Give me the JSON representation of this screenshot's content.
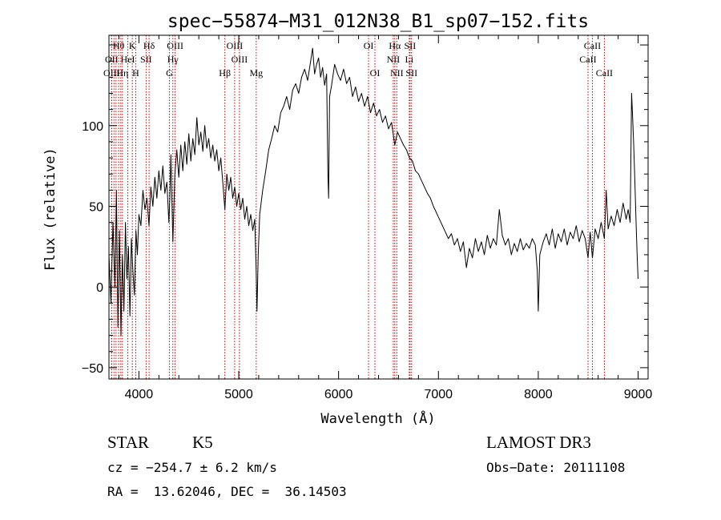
{
  "chart_data": {
    "type": "line",
    "title": "spec−55874−M31_012N38_B1_sp07−152.fits",
    "xlabel": "Wavelength (Å)",
    "ylabel": "Flux (relative)",
    "xlim": [
      3700,
      9100
    ],
    "ylim": [
      -57,
      156
    ],
    "xticks": [
      4000,
      5000,
      6000,
      7000,
      8000,
      9000
    ],
    "yticks": [
      -50,
      0,
      50,
      100
    ],
    "line_color": "#000000",
    "marker_color": "#c00000",
    "spectrum": [
      [
        3700,
        20
      ],
      [
        3720,
        -10
      ],
      [
        3740,
        40
      ],
      [
        3760,
        0
      ],
      [
        3775,
        60
      ],
      [
        3790,
        -25
      ],
      [
        3805,
        35
      ],
      [
        3820,
        -30
      ],
      [
        3835,
        20
      ],
      [
        3850,
        -15
      ],
      [
        3865,
        40
      ],
      [
        3880,
        5
      ],
      [
        3895,
        25
      ],
      [
        3910,
        -18
      ],
      [
        3925,
        30
      ],
      [
        3940,
        10
      ],
      [
        3955,
        -5
      ],
      [
        3970,
        35
      ],
      [
        3985,
        20
      ],
      [
        4000,
        45
      ],
      [
        4020,
        38
      ],
      [
        4040,
        60
      ],
      [
        4060,
        48
      ],
      [
        4080,
        55
      ],
      [
        4101,
        38
      ],
      [
        4120,
        62
      ],
      [
        4140,
        50
      ],
      [
        4160,
        68
      ],
      [
        4180,
        55
      ],
      [
        4200,
        72
      ],
      [
        4220,
        60
      ],
      [
        4240,
        75
      ],
      [
        4260,
        58
      ],
      [
        4280,
        65
      ],
      [
        4300,
        40
      ],
      [
        4310,
        55
      ],
      [
        4320,
        82
      ],
      [
        4340,
        28
      ],
      [
        4360,
        70
      ],
      [
        4380,
        85
      ],
      [
        4400,
        68
      ],
      [
        4420,
        88
      ],
      [
        4440,
        72
      ],
      [
        4460,
        90
      ],
      [
        4480,
        76
      ],
      [
        4500,
        95
      ],
      [
        4520,
        78
      ],
      [
        4540,
        92
      ],
      [
        4560,
        82
      ],
      [
        4580,
        105
      ],
      [
        4600,
        88
      ],
      [
        4620,
        96
      ],
      [
        4640,
        84
      ],
      [
        4660,
        100
      ],
      [
        4680,
        86
      ],
      [
        4700,
        92
      ],
      [
        4720,
        80
      ],
      [
        4740,
        88
      ],
      [
        4760,
        78
      ],
      [
        4780,
        85
      ],
      [
        4800,
        72
      ],
      [
        4820,
        80
      ],
      [
        4840,
        65
      ],
      [
        4861,
        48
      ],
      [
        4880,
        70
      ],
      [
        4900,
        60
      ],
      [
        4920,
        68
      ],
      [
        4940,
        55
      ],
      [
        4960,
        62
      ],
      [
        4980,
        50
      ],
      [
        5000,
        58
      ],
      [
        5020,
        48
      ],
      [
        5040,
        55
      ],
      [
        5060,
        42
      ],
      [
        5080,
        50
      ],
      [
        5100,
        38
      ],
      [
        5120,
        45
      ],
      [
        5140,
        35
      ],
      [
        5160,
        42
      ],
      [
        5175,
        10
      ],
      [
        5183,
        -15
      ],
      [
        5195,
        20
      ],
      [
        5210,
        45
      ],
      [
        5240,
        60
      ],
      [
        5270,
        72
      ],
      [
        5300,
        85
      ],
      [
        5330,
        92
      ],
      [
        5360,
        100
      ],
      [
        5390,
        96
      ],
      [
        5420,
        108
      ],
      [
        5450,
        112
      ],
      [
        5480,
        118
      ],
      [
        5510,
        110
      ],
      [
        5540,
        122
      ],
      [
        5570,
        126
      ],
      [
        5600,
        120
      ],
      [
        5630,
        130
      ],
      [
        5660,
        135
      ],
      [
        5690,
        128
      ],
      [
        5720,
        140
      ],
      [
        5740,
        148
      ],
      [
        5760,
        132
      ],
      [
        5780,
        138
      ],
      [
        5800,
        142
      ],
      [
        5820,
        130
      ],
      [
        5840,
        136
      ],
      [
        5860,
        125
      ],
      [
        5880,
        132
      ],
      [
        5893,
        70
      ],
      [
        5900,
        55
      ],
      [
        5910,
        118
      ],
      [
        5930,
        125
      ],
      [
        5960,
        138
      ],
      [
        5990,
        132
      ],
      [
        6020,
        128
      ],
      [
        6050,
        135
      ],
      [
        6080,
        126
      ],
      [
        6110,
        130
      ],
      [
        6140,
        118
      ],
      [
        6170,
        124
      ],
      [
        6200,
        115
      ],
      [
        6230,
        120
      ],
      [
        6260,
        112
      ],
      [
        6290,
        118
      ],
      [
        6320,
        108
      ],
      [
        6350,
        114
      ],
      [
        6380,
        106
      ],
      [
        6410,
        110
      ],
      [
        6440,
        102
      ],
      [
        6470,
        106
      ],
      [
        6500,
        98
      ],
      [
        6530,
        102
      ],
      [
        6563,
        88
      ],
      [
        6590,
        96
      ],
      [
        6620,
        92
      ],
      [
        6650,
        88
      ],
      [
        6680,
        85
      ],
      [
        6710,
        80
      ],
      [
        6740,
        78
      ],
      [
        6770,
        72
      ],
      [
        6800,
        70
      ],
      [
        6830,
        66
      ],
      [
        6860,
        62
      ],
      [
        6890,
        58
      ],
      [
        6920,
        55
      ],
      [
        6950,
        50
      ],
      [
        6980,
        46
      ],
      [
        7010,
        42
      ],
      [
        7040,
        38
      ],
      [
        7070,
        34
      ],
      [
        7100,
        30
      ],
      [
        7130,
        33
      ],
      [
        7160,
        26
      ],
      [
        7190,
        30
      ],
      [
        7220,
        22
      ],
      [
        7250,
        28
      ],
      [
        7280,
        12
      ],
      [
        7310,
        24
      ],
      [
        7340,
        18
      ],
      [
        7370,
        30
      ],
      [
        7400,
        22
      ],
      [
        7430,
        28
      ],
      [
        7460,
        20
      ],
      [
        7490,
        32
      ],
      [
        7520,
        24
      ],
      [
        7550,
        30
      ],
      [
        7580,
        26
      ],
      [
        7610,
        48
      ],
      [
        7640,
        32
      ],
      [
        7670,
        26
      ],
      [
        7700,
        30
      ],
      [
        7730,
        20
      ],
      [
        7760,
        27
      ],
      [
        7790,
        22
      ],
      [
        7820,
        30
      ],
      [
        7850,
        23
      ],
      [
        7880,
        27
      ],
      [
        7910,
        24
      ],
      [
        7940,
        30
      ],
      [
        7970,
        26
      ],
      [
        7990,
        10
      ],
      [
        8000,
        -15
      ],
      [
        8015,
        20
      ],
      [
        8050,
        28
      ],
      [
        8080,
        33
      ],
      [
        8110,
        26
      ],
      [
        8140,
        36
      ],
      [
        8170,
        24
      ],
      [
        8200,
        33
      ],
      [
        8230,
        28
      ],
      [
        8260,
        36
      ],
      [
        8290,
        26
      ],
      [
        8320,
        34
      ],
      [
        8350,
        30
      ],
      [
        8380,
        38
      ],
      [
        8410,
        28
      ],
      [
        8440,
        35
      ],
      [
        8470,
        30
      ],
      [
        8498,
        18
      ],
      [
        8520,
        34
      ],
      [
        8542,
        18
      ],
      [
        8570,
        36
      ],
      [
        8600,
        30
      ],
      [
        8630,
        40
      ],
      [
        8662,
        30
      ],
      [
        8680,
        60
      ],
      [
        8700,
        36
      ],
      [
        8730,
        44
      ],
      [
        8760,
        38
      ],
      [
        8790,
        48
      ],
      [
        8820,
        40
      ],
      [
        8850,
        52
      ],
      [
        8880,
        42
      ],
      [
        8900,
        48
      ],
      [
        8920,
        40
      ],
      [
        8935,
        120
      ],
      [
        8945,
        105
      ],
      [
        8955,
        90
      ],
      [
        8965,
        70
      ],
      [
        8980,
        40
      ],
      [
        8990,
        20
      ],
      [
        9000,
        5
      ]
    ],
    "lines": [
      {
        "label": "Hθ",
        "wl": 3797,
        "row": 0
      },
      {
        "label": "K",
        "wl": 3934,
        "row": 0
      },
      {
        "label": "Hδ",
        "wl": 4102,
        "row": 0
      },
      {
        "label": "OIII",
        "wl": 4363,
        "row": 0
      },
      {
        "label": "OIII",
        "wl": 4959,
        "row": 0
      },
      {
        "label": "OI",
        "wl": 6300,
        "row": 0
      },
      {
        "label": "Hα",
        "wl": 6563,
        "row": 0
      },
      {
        "label": "SII",
        "wl": 6716,
        "row": 0
      },
      {
        "label": "CaII",
        "wl": 8542,
        "row": 0
      },
      {
        "label": "OII",
        "wl": 3727,
        "row": 1
      },
      {
        "label": "HeI",
        "wl": 3889,
        "row": 1
      },
      {
        "label": "SII",
        "wl": 4072,
        "row": 1
      },
      {
        "label": "Hγ",
        "wl": 4340,
        "row": 1
      },
      {
        "label": "OIII",
        "wl": 5007,
        "row": 1
      },
      {
        "label": "NII",
        "wl": 6548,
        "row": 1
      },
      {
        "label": "Li",
        "wl": 6708,
        "row": 1
      },
      {
        "label": "CaII",
        "wl": 8498,
        "row": 1
      },
      {
        "label": "OIII",
        "wl": 3727,
        "row": 2
      },
      {
        "label": "Hη",
        "wl": 3835,
        "row": 2
      },
      {
        "label": "H",
        "wl": 3968,
        "row": 2
      },
      {
        "label": "G",
        "wl": 4305,
        "row": 2
      },
      {
        "label": "Hβ",
        "wl": 4861,
        "row": 2
      },
      {
        "label": "Mg",
        "wl": 5175,
        "row": 2
      },
      {
        "label": "OI",
        "wl": 6364,
        "row": 2
      },
      {
        "label": "NII",
        "wl": 6583,
        "row": 2
      },
      {
        "label": "SII",
        "wl": 6731,
        "row": 2
      },
      {
        "label": "CaII",
        "wl": 8662,
        "row": 2
      },
      {
        "label": "",
        "wl": 3750,
        "row": 3
      },
      {
        "label": "",
        "wl": 3771,
        "row": 3
      },
      {
        "label": "",
        "wl": 3819,
        "row": 3
      }
    ]
  },
  "info": {
    "class": "STAR",
    "subclass": "K5",
    "survey": "LAMOST DR3",
    "cz": "cz = −254.7 ± 6.2 km/s",
    "obs_date": "Obs−Date: 20111108",
    "coords": "RA =  13.62046, DEC =  36.14503"
  }
}
